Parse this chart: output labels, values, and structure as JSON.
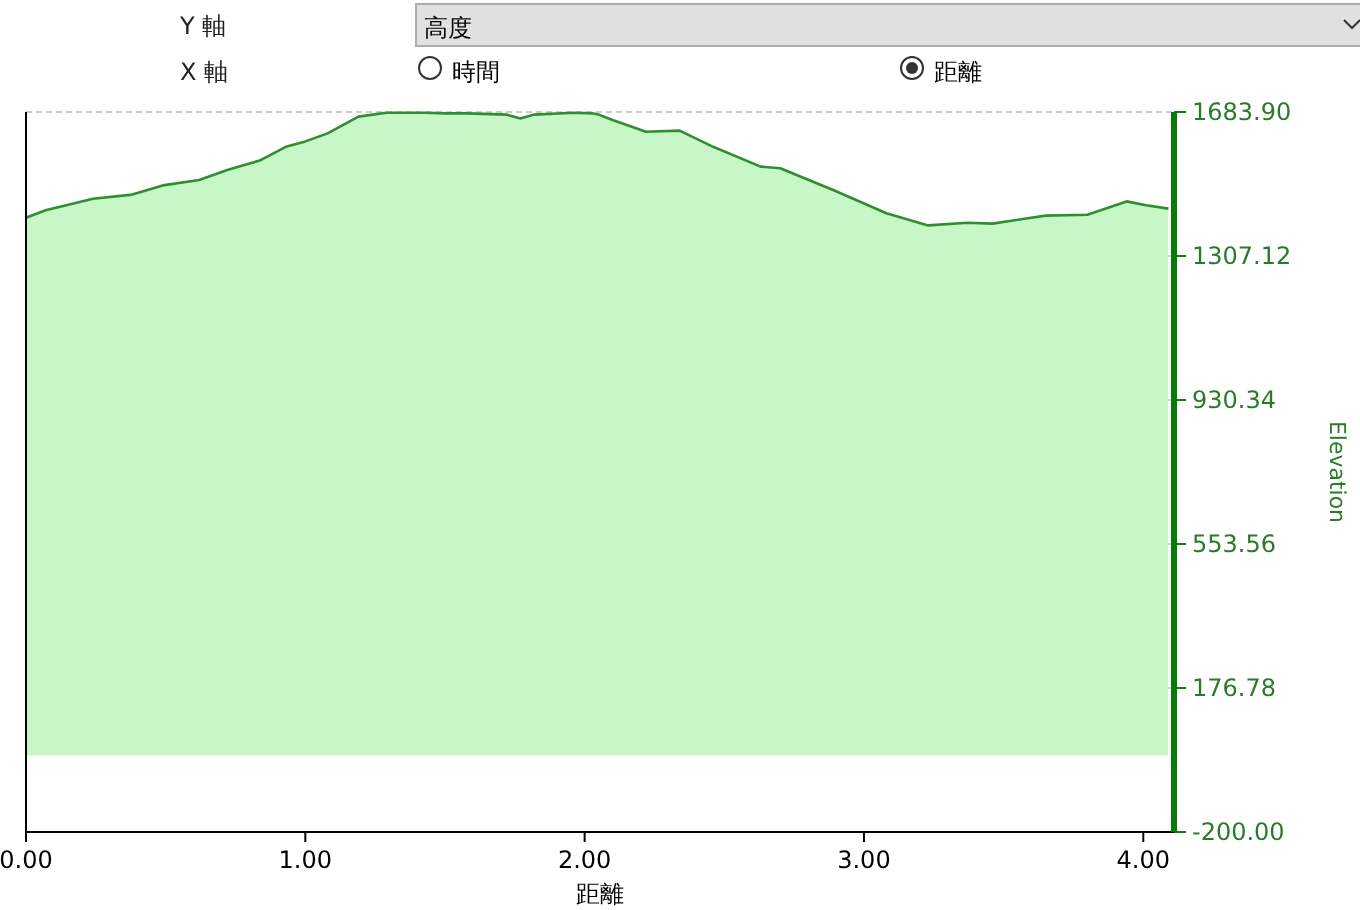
{
  "chart_data": {
    "type": "area",
    "xlabel": "距離",
    "ylabel": "Elevation",
    "annotations": [
      "Y 軸",
      "高度",
      "X 軸",
      "時間",
      "距離"
    ],
    "x": [
      0.0,
      0.07,
      0.24,
      0.38,
      0.49,
      0.62,
      0.72,
      0.84,
      0.93,
      1.0,
      1.08,
      1.19,
      1.29,
      1.43,
      1.5,
      1.58,
      1.72,
      1.77,
      1.82,
      1.96,
      2.03,
      2.05,
      2.1,
      2.22,
      2.34,
      2.46,
      2.63,
      2.7,
      2.89,
      3.08,
      3.23,
      3.37,
      3.46,
      3.65,
      3.8,
      3.94,
      4.01,
      4.09
    ],
    "series": [
      {
        "color": "#2f8f2f",
        "values": [
          1407,
          1427,
          1457,
          1468,
          1492,
          1506,
          1532,
          1558,
          1593,
          1607,
          1628,
          1672,
          1682,
          1682,
          1680,
          1680,
          1677,
          1667,
          1677,
          1682,
          1680,
          1677,
          1663,
          1632,
          1635,
          1593,
          1541,
          1537,
          1480,
          1419,
          1387,
          1394,
          1392,
          1413,
          1415,
          1450,
          1440,
          1431
        ]
      }
    ],
    "xlim": [
      0,
      4.11
    ],
    "ylim": [
      -200,
      1683.9
    ],
    "xticks": [
      {
        "value": 0,
        "label": "0.00"
      },
      {
        "value": 1,
        "label": "1.00"
      },
      {
        "value": 2,
        "label": "2.00"
      },
      {
        "value": 3,
        "label": "3.00"
      },
      {
        "value": 4,
        "label": "4.00"
      }
    ],
    "yticks": [
      {
        "value": -200,
        "label": "-200.00"
      },
      {
        "value": 176.78,
        "label": "176.78"
      },
      {
        "value": 553.56,
        "label": "553.56"
      },
      {
        "value": 930.34,
        "label": "930.34"
      },
      {
        "value": 1307.12,
        "label": "1307.12"
      },
      {
        "value": 1683.9,
        "label": "1683.90"
      }
    ],
    "grid": "y"
  }
}
